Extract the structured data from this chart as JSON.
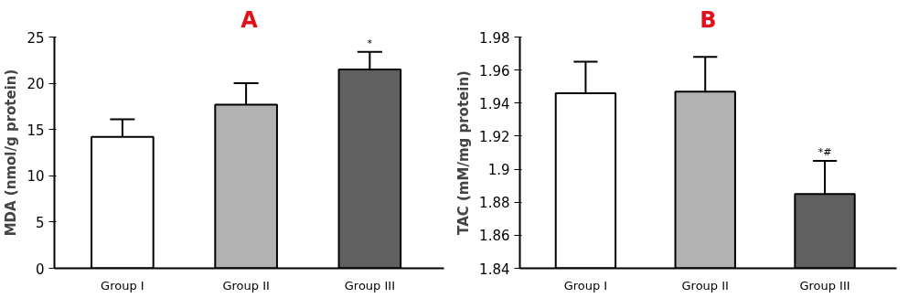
{
  "chart_data": [
    {
      "type": "bar",
      "title": "A",
      "ylabel": "MDA (nmol/g protein)",
      "categories": [
        "Group I",
        "Group II",
        "Group III"
      ],
      "values": [
        14.2,
        17.7,
        21.5
      ],
      "colors": [
        "#ffffff",
        "#b2b2b2",
        "#606060"
      ],
      "errors": [
        [
          14.2,
          16.1
        ],
        [
          17.7,
          20.0
        ],
        [
          21.5,
          23.4
        ]
      ],
      "ylim": [
        0,
        25
      ],
      "yticks": [
        0,
        5,
        10,
        15,
        20,
        25
      ],
      "grid": false,
      "annotations": [
        {
          "text": "*",
          "x": "Group III",
          "y": 23.4
        }
      ]
    },
    {
      "type": "bar",
      "title": "B",
      "ylabel": "TAC (mM/mg protein)",
      "categories": [
        "Group I",
        "Group II",
        "Group III"
      ],
      "values": [
        1.946,
        1.947,
        1.885
      ],
      "colors": [
        "#ffffff",
        "#b2b2b2",
        "#606060"
      ],
      "errors": [
        [
          1.946,
          1.965
        ],
        [
          1.947,
          1.968
        ],
        [
          1.885,
          1.905
        ]
      ],
      "ylim": [
        1.84,
        1.98
      ],
      "yticks": [
        1.84,
        1.86,
        1.88,
        1.9,
        1.92,
        1.94,
        1.96,
        1.98
      ],
      "grid": false,
      "annotations": [
        {
          "text": "*#",
          "x": "Group III",
          "y": 1.905
        }
      ]
    }
  ]
}
